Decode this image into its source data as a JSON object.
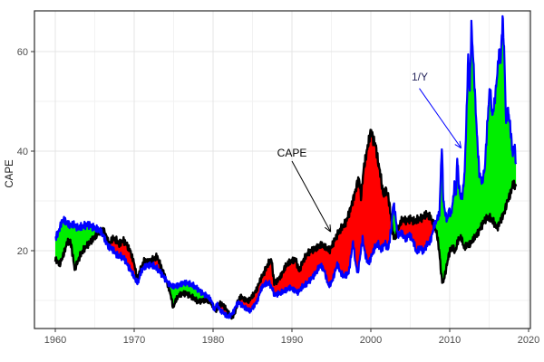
{
  "figure": {
    "background": "#ffffff",
    "description": "Time series chart of CAPE ratio vs inverse yield (1/Y), 1960-2018"
  },
  "chart_data": {
    "type": "line",
    "title": "",
    "xlabel": "",
    "ylabel": "CAPE",
    "x_ticks": [
      1960,
      1970,
      1980,
      1990,
      2000,
      2010,
      2020
    ],
    "x_minor_ticks": [
      1965,
      1975,
      1985,
      1995,
      2005,
      2015
    ],
    "y_ticks": [
      20,
      40,
      60
    ],
    "y_minor_ticks": [
      10,
      30,
      50
    ],
    "x_domain": [
      1957.4,
      2020.6
    ],
    "y_domain": [
      4.4,
      68.2
    ],
    "grid": true,
    "legend_position": "none",
    "colors": {
      "cape_line": "#000000",
      "inverse_yield_line": "#0000ff",
      "ribbon_green": "#00ee00",
      "ribbon_red": "#ff0000",
      "grid_major": "#e4e4e4",
      "grid_minor": "#f2f2f2",
      "panel_border": "#2a2a2a",
      "tick_text": "#4d4d4d"
    },
    "ribbon_rules": {
      "green": "1/Y above CAPE",
      "red": "CAPE above 1/Y"
    },
    "annotations": [
      {
        "label": "CAPE",
        "text_color": "#000000",
        "arrow_color": "#000000",
        "text_at": [
          1990.0,
          39.6
        ],
        "arrow_from": [
          1990.0,
          38.0
        ],
        "arrow_to": [
          1994.9,
          23.8
        ]
      },
      {
        "label": "1/Y",
        "text_color": "#26265c",
        "arrow_color": "#0000ff",
        "text_at": [
          2006.15,
          54.9
        ],
        "arrow_from": [
          2006.15,
          52.6
        ],
        "arrow_to": [
          2011.45,
          40.6
        ]
      }
    ],
    "series": [
      {
        "name": "CAPE",
        "color": "#000000",
        "points": [
          [
            1960.0,
            18.4
          ],
          [
            1960.3,
            17.6
          ],
          [
            1960.6,
            17.4
          ],
          [
            1960.9,
            18.6
          ],
          [
            1961.2,
            20.0
          ],
          [
            1961.5,
            21.6
          ],
          [
            1961.9,
            22.0
          ],
          [
            1962.2,
            19.2
          ],
          [
            1962.45,
            16.4
          ],
          [
            1962.8,
            17.6
          ],
          [
            1963.2,
            19.2
          ],
          [
            1963.6,
            20.2
          ],
          [
            1964.0,
            21.0
          ],
          [
            1964.5,
            21.9
          ],
          [
            1965.0,
            22.8
          ],
          [
            1965.5,
            23.6
          ],
          [
            1966.0,
            24.2
          ],
          [
            1966.4,
            23.2
          ],
          [
            1966.8,
            21.2
          ],
          [
            1967.2,
            22.4
          ],
          [
            1967.7,
            22.2
          ],
          [
            1968.1,
            21.3
          ],
          [
            1968.6,
            22.1
          ],
          [
            1969.0,
            21.4
          ],
          [
            1969.5,
            20.0
          ],
          [
            1970.0,
            17.4
          ],
          [
            1970.4,
            14.2
          ],
          [
            1970.8,
            16.2
          ],
          [
            1971.3,
            18.1
          ],
          [
            1971.8,
            17.7
          ],
          [
            1972.3,
            18.2
          ],
          [
            1972.9,
            18.8
          ],
          [
            1973.3,
            17.2
          ],
          [
            1973.8,
            15.2
          ],
          [
            1974.3,
            13.0
          ],
          [
            1974.7,
            10.6
          ],
          [
            1974.95,
            8.4
          ],
          [
            1975.2,
            9.8
          ],
          [
            1975.6,
            10.9
          ],
          [
            1976.1,
            11.4
          ],
          [
            1976.6,
            11.4
          ],
          [
            1977.1,
            10.9
          ],
          [
            1977.6,
            10.4
          ],
          [
            1978.1,
            9.7
          ],
          [
            1978.6,
            10.0
          ],
          [
            1979.1,
            10.1
          ],
          [
            1979.6,
            9.8
          ],
          [
            1980.1,
            8.6
          ],
          [
            1980.4,
            8.0
          ],
          [
            1980.8,
            9.4
          ],
          [
            1981.2,
            9.2
          ],
          [
            1981.7,
            8.2
          ],
          [
            1982.0,
            7.3
          ],
          [
            1982.4,
            6.6
          ],
          [
            1982.8,
            7.6
          ],
          [
            1983.1,
            9.7
          ],
          [
            1983.5,
            10.8
          ],
          [
            1984.0,
            10.2
          ],
          [
            1984.5,
            9.9
          ],
          [
            1985.0,
            10.9
          ],
          [
            1985.5,
            12.1
          ],
          [
            1986.0,
            14.2
          ],
          [
            1986.5,
            15.7
          ],
          [
            1987.0,
            17.4
          ],
          [
            1987.4,
            18.3
          ],
          [
            1987.75,
            13.4
          ],
          [
            1988.2,
            14.1
          ],
          [
            1988.7,
            15.2
          ],
          [
            1989.2,
            16.9
          ],
          [
            1989.7,
            17.7
          ],
          [
            1990.1,
            18.0
          ],
          [
            1990.45,
            18.4
          ],
          [
            1990.9,
            15.9
          ],
          [
            1991.4,
            17.9
          ],
          [
            1991.9,
            19.3
          ],
          [
            1992.4,
            20.0
          ],
          [
            1993.0,
            20.5
          ],
          [
            1993.7,
            21.2
          ],
          [
            1994.3,
            20.6
          ],
          [
            1994.8,
            20.1
          ],
          [
            1995.3,
            21.8
          ],
          [
            1995.8,
            23.4
          ],
          [
            1996.3,
            24.6
          ],
          [
            1996.8,
            25.6
          ],
          [
            1997.3,
            27.8
          ],
          [
            1997.8,
            30.5
          ],
          [
            1998.2,
            33.0
          ],
          [
            1998.5,
            34.6
          ],
          [
            1998.75,
            30.8
          ],
          [
            1999.1,
            36.5
          ],
          [
            1999.5,
            40.0
          ],
          [
            1999.85,
            43.0
          ],
          [
            2000.05,
            44.2
          ],
          [
            2000.3,
            42.3
          ],
          [
            2000.6,
            41.3
          ],
          [
            2000.9,
            38.0
          ],
          [
            2001.2,
            35.5
          ],
          [
            2001.6,
            31.0
          ],
          [
            2001.9,
            32.2
          ],
          [
            2002.2,
            31.0
          ],
          [
            2002.55,
            27.0
          ],
          [
            2002.8,
            23.2
          ],
          [
            2003.1,
            22.4
          ],
          [
            2003.5,
            24.6
          ],
          [
            2004.0,
            26.4
          ],
          [
            2004.5,
            26.0
          ],
          [
            2005.0,
            26.4
          ],
          [
            2005.5,
            25.9
          ],
          [
            2006.0,
            26.3
          ],
          [
            2006.5,
            26.6
          ],
          [
            2007.0,
            27.4
          ],
          [
            2007.5,
            26.9
          ],
          [
            2008.0,
            25.2
          ],
          [
            2008.4,
            23.2
          ],
          [
            2008.7,
            19.5
          ],
          [
            2008.95,
            14.8
          ],
          [
            2009.15,
            13.4
          ],
          [
            2009.5,
            16.0
          ],
          [
            2009.9,
            19.3
          ],
          [
            2010.3,
            20.8
          ],
          [
            2010.7,
            19.8
          ],
          [
            2011.1,
            22.3
          ],
          [
            2011.5,
            22.6
          ],
          [
            2011.8,
            20.6
          ],
          [
            2012.2,
            21.2
          ],
          [
            2012.6,
            21.3
          ],
          [
            2013.0,
            22.3
          ],
          [
            2013.5,
            23.3
          ],
          [
            2014.0,
            24.9
          ],
          [
            2014.5,
            26.3
          ],
          [
            2015.0,
            26.7
          ],
          [
            2015.5,
            25.9
          ],
          [
            2016.0,
            24.5
          ],
          [
            2016.4,
            25.9
          ],
          [
            2016.9,
            27.6
          ],
          [
            2017.3,
            29.8
          ],
          [
            2017.7,
            31.4
          ],
          [
            2018.0,
            33.3
          ],
          [
            2018.4,
            33.0
          ]
        ]
      },
      {
        "name": "1/Y",
        "color": "#0000ff",
        "points": [
          [
            1960.0,
            22.6
          ],
          [
            1960.3,
            23.3
          ],
          [
            1960.7,
            25.2
          ],
          [
            1961.0,
            26.3
          ],
          [
            1961.4,
            25.7
          ],
          [
            1961.9,
            25.1
          ],
          [
            1962.3,
            25.4
          ],
          [
            1962.8,
            24.6
          ],
          [
            1963.3,
            24.8
          ],
          [
            1963.8,
            25.1
          ],
          [
            1964.3,
            25.2
          ],
          [
            1964.8,
            24.7
          ],
          [
            1965.3,
            24.3
          ],
          [
            1965.8,
            23.8
          ],
          [
            1966.2,
            22.6
          ],
          [
            1966.7,
            20.9
          ],
          [
            1967.2,
            20.4
          ],
          [
            1967.8,
            19.1
          ],
          [
            1968.3,
            18.9
          ],
          [
            1968.8,
            18.3
          ],
          [
            1969.3,
            16.7
          ],
          [
            1969.8,
            15.4
          ],
          [
            1970.2,
            14.0
          ],
          [
            1970.5,
            13.6
          ],
          [
            1970.9,
            15.9
          ],
          [
            1971.4,
            16.9
          ],
          [
            1971.9,
            17.1
          ],
          [
            1972.4,
            17.0
          ],
          [
            1972.9,
            16.4
          ],
          [
            1973.4,
            15.5
          ],
          [
            1973.9,
            14.4
          ],
          [
            1974.4,
            13.3
          ],
          [
            1974.9,
            12.8
          ],
          [
            1975.4,
            12.9
          ],
          [
            1975.9,
            13.3
          ],
          [
            1976.4,
            13.6
          ],
          [
            1976.9,
            13.4
          ],
          [
            1977.4,
            13.1
          ],
          [
            1977.9,
            12.5
          ],
          [
            1978.4,
            11.8
          ],
          [
            1978.9,
            11.2
          ],
          [
            1979.4,
            10.7
          ],
          [
            1979.8,
            9.9
          ],
          [
            1980.15,
            8.1
          ],
          [
            1980.5,
            9.3
          ],
          [
            1980.9,
            8.0
          ],
          [
            1981.3,
            7.6
          ],
          [
            1981.8,
            6.7
          ],
          [
            1982.2,
            7.0
          ],
          [
            1982.6,
            7.7
          ],
          [
            1982.9,
            9.0
          ],
          [
            1983.3,
            9.6
          ],
          [
            1983.8,
            8.8
          ],
          [
            1984.3,
            8.2
          ],
          [
            1984.7,
            7.9
          ],
          [
            1985.1,
            8.7
          ],
          [
            1985.6,
            9.9
          ],
          [
            1986.1,
            12.4
          ],
          [
            1986.6,
            13.3
          ],
          [
            1987.1,
            13.5
          ],
          [
            1987.5,
            12.4
          ],
          [
            1987.8,
            11.1
          ],
          [
            1988.3,
            11.4
          ],
          [
            1988.8,
            11.7
          ],
          [
            1989.3,
            12.1
          ],
          [
            1989.8,
            12.6
          ],
          [
            1990.3,
            12.1
          ],
          [
            1990.8,
            11.6
          ],
          [
            1991.3,
            12.7
          ],
          [
            1991.9,
            13.4
          ],
          [
            1992.4,
            14.3
          ],
          [
            1993.0,
            15.5
          ],
          [
            1993.6,
            17.1
          ],
          [
            1994.1,
            16.0
          ],
          [
            1994.65,
            12.9
          ],
          [
            1995.1,
            13.9
          ],
          [
            1995.75,
            17.3
          ],
          [
            1996.2,
            15.4
          ],
          [
            1996.7,
            14.9
          ],
          [
            1997.2,
            15.6
          ],
          [
            1997.75,
            21.8
          ],
          [
            1998.05,
            17.6
          ],
          [
            1998.35,
            15.4
          ],
          [
            1998.65,
            19.0
          ],
          [
            1998.95,
            22.4
          ],
          [
            1999.3,
            19.2
          ],
          [
            1999.7,
            17.3
          ],
          [
            2000.1,
            19.0
          ],
          [
            2000.5,
            20.6
          ],
          [
            2000.9,
            21.4
          ],
          [
            2001.3,
            20.1
          ],
          [
            2001.8,
            21.6
          ],
          [
            2002.2,
            20.2
          ],
          [
            2002.6,
            24.6
          ],
          [
            2002.85,
            29.6
          ],
          [
            2003.1,
            27.3
          ],
          [
            2003.4,
            23.1
          ],
          [
            2003.9,
            23.6
          ],
          [
            2004.4,
            22.4
          ],
          [
            2004.9,
            23.2
          ],
          [
            2005.4,
            21.8
          ],
          [
            2005.8,
            19.6
          ],
          [
            2006.2,
            20.6
          ],
          [
            2006.7,
            19.9
          ],
          [
            2007.1,
            21.2
          ],
          [
            2007.6,
            22.1
          ],
          [
            2008.0,
            24.9
          ],
          [
            2008.4,
            26.3
          ],
          [
            2008.7,
            27.6
          ],
          [
            2009.0,
            41.2
          ],
          [
            2009.2,
            30.0
          ],
          [
            2009.4,
            27.8
          ],
          [
            2009.7,
            26.0
          ],
          [
            2009.9,
            28.5
          ],
          [
            2010.15,
            27.0
          ],
          [
            2010.4,
            29.8
          ],
          [
            2010.6,
            33.0
          ],
          [
            2010.8,
            31.0
          ],
          [
            2010.95,
            38.9
          ],
          [
            2011.15,
            33.5
          ],
          [
            2011.4,
            30.5
          ],
          [
            2011.65,
            31.5
          ],
          [
            2011.9,
            36.0
          ],
          [
            2012.15,
            48.0
          ],
          [
            2012.35,
            59.4
          ],
          [
            2012.55,
            52.0
          ],
          [
            2012.75,
            65.2
          ],
          [
            2013.0,
            58.0
          ],
          [
            2013.2,
            51.5
          ],
          [
            2013.45,
            43.5
          ],
          [
            2013.75,
            35.6
          ],
          [
            2014.1,
            33.8
          ],
          [
            2014.45,
            36.5
          ],
          [
            2014.75,
            45.0
          ],
          [
            2015.1,
            53.0
          ],
          [
            2015.4,
            47.0
          ],
          [
            2015.7,
            50.0
          ],
          [
            2016.0,
            55.0
          ],
          [
            2016.25,
            60.0
          ],
          [
            2016.45,
            57.5
          ],
          [
            2016.7,
            66.8
          ],
          [
            2016.9,
            60.5
          ],
          [
            2017.15,
            45.5
          ],
          [
            2017.4,
            48.5
          ],
          [
            2017.7,
            44.5
          ],
          [
            2018.0,
            39.0
          ],
          [
            2018.2,
            41.5
          ],
          [
            2018.4,
            37.5
          ]
        ]
      }
    ]
  }
}
